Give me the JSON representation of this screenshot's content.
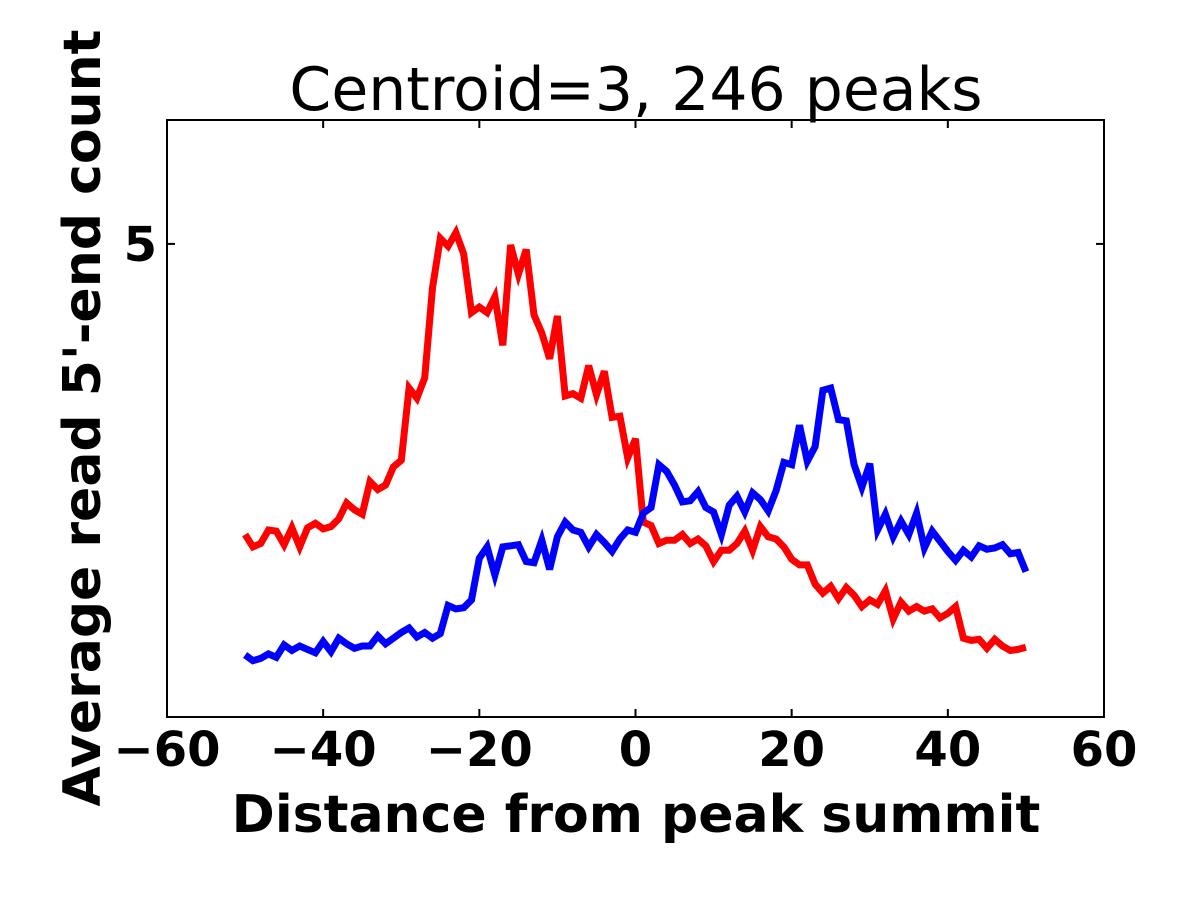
{
  "chart_data": {
    "type": "line",
    "title": "Centroid=3, 246 peaks",
    "xlabel": "Distance from peak summit",
    "ylabel": "Average read 5'-end count",
    "xlim": [
      -60,
      60
    ],
    "ylim": [
      0.8,
      6.1
    ],
    "xticks": [
      -60,
      -40,
      -20,
      0,
      20,
      40,
      60
    ],
    "xtick_labels": [
      "−60",
      "−40",
      "−20",
      "0",
      "20",
      "40",
      "60"
    ],
    "yticks": [
      5
    ],
    "ytick_labels": [
      "5"
    ],
    "grid": false,
    "legend": "none",
    "x": [
      -50,
      -49,
      -48,
      -47,
      -46,
      -45,
      -44,
      -43,
      -42,
      -41,
      -40,
      -39,
      -38,
      -37,
      -36,
      -35,
      -34,
      -33,
      -32,
      -31,
      -30,
      -29,
      -28,
      -27,
      -26,
      -25,
      -24,
      -23,
      -22,
      -21,
      -20,
      -19,
      -18,
      -17,
      -16,
      -15,
      -14,
      -13,
      -12,
      -11,
      -10,
      -9,
      -8,
      -7,
      -6,
      -5,
      -4,
      -3,
      -2,
      -1,
      0,
      1,
      2,
      3,
      4,
      5,
      6,
      7,
      8,
      9,
      10,
      11,
      12,
      13,
      14,
      15,
      16,
      17,
      18,
      19,
      20,
      21,
      22,
      23,
      24,
      25,
      26,
      27,
      28,
      29,
      30,
      31,
      32,
      33,
      34,
      35,
      36,
      37,
      38,
      39,
      40,
      41,
      42,
      43,
      44,
      45,
      46,
      47,
      48,
      49,
      50
    ],
    "series": [
      {
        "color": "#ff0000",
        "values": [
          2.42,
          2.31,
          2.34,
          2.46,
          2.45,
          2.33,
          2.48,
          2.31,
          2.48,
          2.52,
          2.47,
          2.49,
          2.56,
          2.7,
          2.64,
          2.6,
          2.89,
          2.82,
          2.86,
          3.02,
          3.08,
          3.72,
          3.63,
          3.81,
          4.61,
          5.05,
          4.98,
          5.1,
          4.91,
          4.39,
          4.44,
          4.39,
          4.53,
          4.1,
          4.99,
          4.73,
          4.95,
          4.37,
          4.21,
          3.98,
          4.36,
          3.65,
          3.67,
          3.63,
          3.92,
          3.66,
          3.87,
          3.46,
          3.47,
          3.1,
          3.27,
          2.53,
          2.5,
          2.34,
          2.37,
          2.37,
          2.42,
          2.34,
          2.38,
          2.32,
          2.18,
          2.28,
          2.28,
          2.34,
          2.45,
          2.28,
          2.49,
          2.4,
          2.38,
          2.31,
          2.2,
          2.15,
          2.15,
          1.98,
          1.9,
          1.96,
          1.85,
          1.95,
          1.88,
          1.78,
          1.84,
          1.8,
          1.92,
          1.67,
          1.82,
          1.74,
          1.78,
          1.74,
          1.76,
          1.68,
          1.72,
          1.78,
          1.5,
          1.48,
          1.49,
          1.41,
          1.49,
          1.43,
          1.39,
          1.4,
          1.42
        ]
      },
      {
        "color": "#0000ff",
        "values": [
          1.35,
          1.3,
          1.32,
          1.36,
          1.33,
          1.44,
          1.39,
          1.43,
          1.4,
          1.37,
          1.47,
          1.38,
          1.5,
          1.45,
          1.41,
          1.43,
          1.43,
          1.52,
          1.45,
          1.5,
          1.55,
          1.59,
          1.51,
          1.55,
          1.5,
          1.54,
          1.79,
          1.76,
          1.77,
          1.84,
          2.21,
          2.31,
          2.06,
          2.31,
          2.32,
          2.33,
          2.18,
          2.17,
          2.37,
          2.11,
          2.4,
          2.53,
          2.46,
          2.44,
          2.31,
          2.42,
          2.35,
          2.27,
          2.38,
          2.46,
          2.44,
          2.61,
          2.66,
          3.04,
          2.98,
          2.86,
          2.71,
          2.72,
          2.8,
          2.66,
          2.62,
          2.42,
          2.68,
          2.76,
          2.62,
          2.79,
          2.73,
          2.63,
          2.81,
          3.06,
          3.04,
          3.39,
          3.07,
          3.2,
          3.7,
          3.72,
          3.44,
          3.43,
          3.04,
          2.84,
          3.05,
          2.46,
          2.6,
          2.4,
          2.54,
          2.42,
          2.61,
          2.3,
          2.45,
          2.36,
          2.27,
          2.19,
          2.28,
          2.22,
          2.32,
          2.29,
          2.3,
          2.33,
          2.25,
          2.26,
          2.09
        ]
      }
    ]
  }
}
